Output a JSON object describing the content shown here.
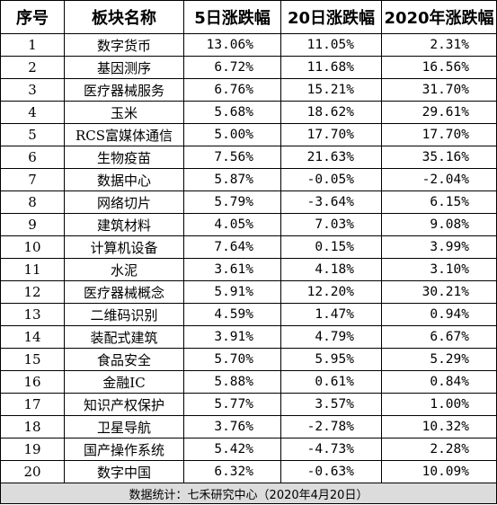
{
  "table": {
    "headers": [
      "序号",
      "板块名称",
      "5日涨跌幅",
      "20日涨跌幅",
      "2020年涨跌幅"
    ],
    "rows": [
      [
        "1",
        "数字货币",
        "13.06%",
        "11.05%",
        "2.31%"
      ],
      [
        "2",
        "基因测序",
        "6.72%",
        "11.68%",
        "16.56%"
      ],
      [
        "3",
        "医疗器械服务",
        "6.76%",
        "15.21%",
        "31.70%"
      ],
      [
        "4",
        "玉米",
        "5.68%",
        "18.62%",
        "29.61%"
      ],
      [
        "5",
        "RCS富媒体通信",
        "5.00%",
        "17.70%",
        "17.70%"
      ],
      [
        "6",
        "生物疫苗",
        "7.56%",
        "21.63%",
        "35.16%"
      ],
      [
        "7",
        "数据中心",
        "5.87%",
        "-0.05%",
        "-2.04%"
      ],
      [
        "8",
        "网络切片",
        "5.79%",
        "-3.64%",
        "6.15%"
      ],
      [
        "9",
        "建筑材料",
        "4.05%",
        "7.03%",
        "9.08%"
      ],
      [
        "10",
        "计算机设备",
        "7.64%",
        "0.15%",
        "3.99%"
      ],
      [
        "11",
        "水泥",
        "3.61%",
        "4.18%",
        "3.10%"
      ],
      [
        "12",
        "医疗器械概念",
        "5.91%",
        "12.20%",
        "30.21%"
      ],
      [
        "13",
        "二维码识别",
        "4.59%",
        "1.47%",
        "0.94%"
      ],
      [
        "14",
        "装配式建筑",
        "3.91%",
        "4.79%",
        "6.67%"
      ],
      [
        "15",
        "食品安全",
        "5.70%",
        "5.95%",
        "5.29%"
      ],
      [
        "16",
        "金融IC",
        "5.88%",
        "0.61%",
        "0.84%"
      ],
      [
        "17",
        "知识产权保护",
        "5.77%",
        "3.57%",
        "1.00%"
      ],
      [
        "18",
        "卫星导航",
        "3.76%",
        "-2.78%",
        "10.32%"
      ],
      [
        "19",
        "国产操作系统",
        "5.42%",
        "-4.73%",
        "2.28%"
      ],
      [
        "20",
        "数字中国",
        "6.32%",
        "-0.63%",
        "10.09%"
      ]
    ],
    "footer": "数据统计：七禾研究中心（2020年4月20日）"
  },
  "colors": {
    "footer_background": "#dcdcdc",
    "grid": "#000000"
  }
}
